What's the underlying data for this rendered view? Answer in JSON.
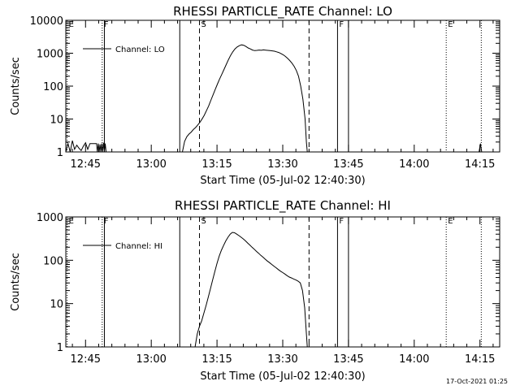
{
  "footer": {
    "timestamp": "17-Oct-2021 01:25"
  },
  "chart_data": [
    {
      "type": "line",
      "title": "RHESSI PARTICLE_RATE Channel: LO",
      "xlabel": "Start Time (05-Jul-02 12:40:30)",
      "ylabel": "Counts/sec",
      "yscale": "log",
      "ylim": [
        1,
        10000
      ],
      "xlim_minutes_after_12_40_30": [
        0,
        99
      ],
      "xtick_labels": [
        "12:45",
        "13:00",
        "13:15",
        "13:30",
        "13:45",
        "14:00",
        "14:15"
      ],
      "xtick_minutes": [
        4.5,
        19.5,
        34.5,
        49.5,
        64.5,
        79.5,
        94.5
      ],
      "ytick_labels": [
        "1",
        "10",
        "100",
        "1000",
        "10000"
      ],
      "ytick_values": [
        1,
        10,
        100,
        1000,
        10000
      ],
      "legend": {
        "label": "Channel: LO",
        "position": "top-left"
      },
      "markers": [
        {
          "label": "E",
          "minute": 0.3,
          "style": "dotted"
        },
        {
          "label": "F",
          "minute": 8.3,
          "style": "dotted"
        },
        {
          "label": "",
          "minute": 8.8,
          "style": "solid"
        },
        {
          "label": "",
          "minute": 26.0,
          "style": "solid"
        },
        {
          "label": "S",
          "minute": 30.5,
          "style": "dashed"
        },
        {
          "label": "",
          "minute": 55.5,
          "style": "dashed"
        },
        {
          "label": "F",
          "minute": 62.0,
          "style": "solid"
        },
        {
          "label": "",
          "minute": 64.5,
          "style": "solid"
        },
        {
          "label": "E",
          "minute": 86.8,
          "style": "dotted"
        },
        {
          "label": "",
          "minute": 94.8,
          "style": "dotted"
        }
      ],
      "series": [
        {
          "name": "Channel: LO",
          "segments": [
            [
              [
                0,
                1
              ],
              [
                0.5,
                1.8
              ],
              [
                1,
                1
              ],
              [
                1.5,
                2.2
              ],
              [
                2,
                1.2
              ],
              [
                2.5,
                1.6
              ],
              [
                3,
                1.3
              ],
              [
                3.5,
                1.1
              ],
              [
                4,
                1.5
              ],
              [
                4.5,
                1.9
              ],
              [
                5,
                1.2
              ],
              [
                5.5,
                1.8
              ],
              [
                6,
                1.8
              ],
              [
                6.5,
                1.8
              ],
              [
                7,
                1.8
              ],
              [
                7.2,
                1
              ],
              [
                7.4,
                1.8
              ],
              [
                7.6,
                1
              ],
              [
                7.8,
                1.7
              ],
              [
                8,
                1
              ],
              [
                8.2,
                1.8
              ],
              [
                8.4,
                1
              ],
              [
                8.6,
                1.9
              ],
              [
                8.8,
                1
              ],
              [
                9.0,
                1.8
              ],
              [
                9.2,
                1
              ]
            ],
            [
              [
                26.6,
                1
              ],
              [
                27.1,
                2.1
              ],
              [
                27.6,
                2.9
              ],
              [
                28.1,
                3.5
              ],
              [
                28.6,
                4
              ],
              [
                29.1,
                4.8
              ],
              [
                29.6,
                5.5
              ],
              [
                30.1,
                6.6
              ],
              [
                30.6,
                8
              ],
              [
                31.1,
                10.1
              ],
              [
                31.6,
                13
              ],
              [
                32.1,
                18
              ],
              [
                32.6,
                25
              ],
              [
                33.1,
                37
              ],
              [
                33.6,
                54
              ],
              [
                34.1,
                79
              ],
              [
                34.6,
                115
              ],
              [
                35.1,
                165
              ],
              [
                35.6,
                230
              ],
              [
                36.1,
                320
              ],
              [
                36.6,
                450
              ],
              [
                37.1,
                630
              ],
              [
                37.6,
                860
              ],
              [
                38.1,
                1100
              ],
              [
                38.6,
                1350
              ],
              [
                39.1,
                1550
              ],
              [
                39.6,
                1700
              ],
              [
                40.1,
                1800
              ],
              [
                40.6,
                1750
              ],
              [
                41.1,
                1600
              ],
              [
                41.6,
                1450
              ],
              [
                42.1,
                1350
              ],
              [
                42.6,
                1250
              ],
              [
                43.1,
                1200
              ],
              [
                43.6,
                1220
              ],
              [
                44.1,
                1250
              ],
              [
                44.6,
                1230
              ],
              [
                45.1,
                1260
              ],
              [
                45.6,
                1240
              ],
              [
                46.1,
                1220
              ],
              [
                46.6,
                1200
              ],
              [
                47.1,
                1180
              ],
              [
                47.6,
                1150
              ],
              [
                48.1,
                1100
              ],
              [
                48.6,
                1050
              ],
              [
                49.1,
                980
              ],
              [
                49.6,
                900
              ],
              [
                50.1,
                800
              ],
              [
                50.6,
                700
              ],
              [
                51.1,
                600
              ],
              [
                51.6,
                500
              ],
              [
                52.1,
                400
              ],
              [
                52.6,
                300
              ],
              [
                53.1,
                200
              ],
              [
                53.6,
                100
              ],
              [
                54.1,
                40
              ],
              [
                54.6,
                10
              ],
              [
                54.9,
                2
              ],
              [
                55.1,
                1
              ]
            ],
            [
              [
                94.3,
                1
              ],
              [
                94.6,
                1.8
              ],
              [
                94.9,
                1
              ]
            ]
          ]
        }
      ]
    },
    {
      "type": "line",
      "title": "RHESSI PARTICLE_RATE Channel: HI",
      "xlabel": "Start Time (05-Jul-02 12:40:30)",
      "ylabel": "Counts/sec",
      "yscale": "log",
      "ylim": [
        1,
        1000
      ],
      "xlim_minutes_after_12_40_30": [
        0,
        99
      ],
      "xtick_labels": [
        "12:45",
        "13:00",
        "13:15",
        "13:30",
        "13:45",
        "14:00",
        "14:15"
      ],
      "xtick_minutes": [
        4.5,
        19.5,
        34.5,
        49.5,
        64.5,
        79.5,
        94.5
      ],
      "ytick_labels": [
        "1",
        "10",
        "100",
        "1000"
      ],
      "ytick_values": [
        1,
        10,
        100,
        1000
      ],
      "legend": {
        "label": "Channel: HI",
        "position": "top-left"
      },
      "markers": [
        {
          "label": "E",
          "minute": 0.3,
          "style": "dotted"
        },
        {
          "label": "F",
          "minute": 8.3,
          "style": "dotted"
        },
        {
          "label": "",
          "minute": 8.8,
          "style": "solid"
        },
        {
          "label": "",
          "minute": 26.0,
          "style": "solid"
        },
        {
          "label": "S",
          "minute": 30.5,
          "style": "dashed"
        },
        {
          "label": "",
          "minute": 55.5,
          "style": "dashed"
        },
        {
          "label": "F",
          "minute": 62.0,
          "style": "solid"
        },
        {
          "label": "",
          "minute": 64.5,
          "style": "solid"
        },
        {
          "label": "E",
          "minute": 86.8,
          "style": "dotted"
        },
        {
          "label": "",
          "minute": 94.8,
          "style": "dotted"
        }
      ],
      "series": [
        {
          "name": "Channel: HI",
          "segments": [
            [
              [
                29.5,
                1
              ],
              [
                30.0,
                2
              ],
              [
                30.5,
                3
              ],
              [
                31.0,
                4
              ],
              [
                31.5,
                6
              ],
              [
                32.0,
                9
              ],
              [
                32.5,
                14
              ],
              [
                33.0,
                22
              ],
              [
                33.5,
                35
              ],
              [
                34.0,
                55
              ],
              [
                34.5,
                85
              ],
              [
                35.0,
                125
              ],
              [
                35.5,
                170
              ],
              [
                36.0,
                220
              ],
              [
                36.5,
                280
              ],
              [
                37.0,
                340
              ],
              [
                37.5,
                400
              ],
              [
                38.0,
                440
              ],
              [
                38.5,
                430
              ],
              [
                39.0,
                400
              ],
              [
                39.5,
                370
              ],
              [
                40.0,
                340
              ],
              [
                40.5,
                310
              ],
              [
                41.0,
                280
              ],
              [
                41.5,
                250
              ],
              [
                42.0,
                225
              ],
              [
                42.5,
                200
              ],
              [
                43.0,
                180
              ],
              [
                43.5,
                160
              ],
              [
                44.0,
                145
              ],
              [
                44.5,
                130
              ],
              [
                45.0,
                118
              ],
              [
                45.5,
                106
              ],
              [
                46.0,
                96
              ],
              [
                46.5,
                88
              ],
              [
                47.0,
                80
              ],
              [
                47.5,
                73
              ],
              [
                48.0,
                67
              ],
              [
                48.5,
                61
              ],
              [
                49.0,
                56
              ],
              [
                49.5,
                52
              ],
              [
                50.0,
                48
              ],
              [
                50.5,
                44
              ],
              [
                51.0,
                41
              ],
              [
                51.5,
                39
              ],
              [
                52.0,
                37
              ],
              [
                52.5,
                35
              ],
              [
                53.0,
                33
              ],
              [
                53.5,
                30
              ],
              [
                54.0,
                20
              ],
              [
                54.5,
                8
              ],
              [
                54.9,
                2
              ],
              [
                55.1,
                1
              ]
            ]
          ]
        }
      ]
    }
  ]
}
